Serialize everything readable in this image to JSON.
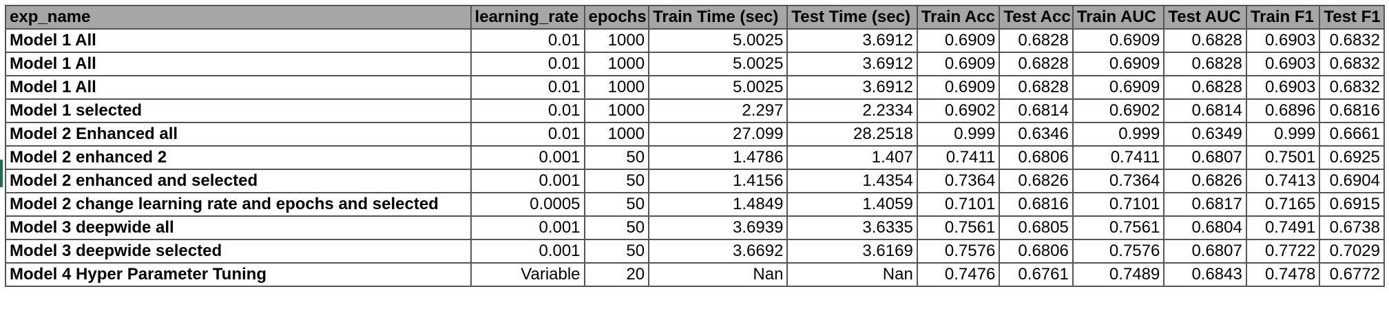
{
  "columns": [
    "exp_name",
    "learning_rate",
    "epochs",
    "Train Time (sec)",
    "Test Time (sec)",
    "Train Acc",
    "Test Acc",
    "Train AUC",
    "Test AUC",
    "Train F1",
    "Test F1"
  ],
  "rows": [
    [
      "Model 1 All",
      "0.01",
      "1000",
      "5.0025",
      "3.6912",
      "0.6909",
      "0.6828",
      "0.6909",
      "0.6828",
      "0.6903",
      "0.6832"
    ],
    [
      "Model 1 All",
      "0.01",
      "1000",
      "5.0025",
      "3.6912",
      "0.6909",
      "0.6828",
      "0.6909",
      "0.6828",
      "0.6903",
      "0.6832"
    ],
    [
      "Model 1 All",
      "0.01",
      "1000",
      "5.0025",
      "3.6912",
      "0.6909",
      "0.6828",
      "0.6909",
      "0.6828",
      "0.6903",
      "0.6832"
    ],
    [
      "Model 1 selected",
      "0.01",
      "1000",
      "2.297",
      "2.2334",
      "0.6902",
      "0.6814",
      "0.6902",
      "0.6814",
      "0.6896",
      "0.6816"
    ],
    [
      "Model 2 Enhanced all",
      "0.01",
      "1000",
      "27.099",
      "28.2518",
      "0.999",
      "0.6346",
      "0.999",
      "0.6349",
      "0.999",
      "0.6661"
    ],
    [
      "Model 2 enhanced 2",
      "0.001",
      "50",
      "1.4786",
      "1.407",
      "0.7411",
      "0.6806",
      "0.7411",
      "0.6807",
      "0.7501",
      "0.6925"
    ],
    [
      "Model 2 enhanced and selected",
      "0.001",
      "50",
      "1.4156",
      "1.4354",
      "0.7364",
      "0.6826",
      "0.7364",
      "0.6826",
      "0.7413",
      "0.6904"
    ],
    [
      "Model 2 change learning rate and epochs and selected",
      "0.0005",
      "50",
      "1.4849",
      "1.4059",
      "0.7101",
      "0.6816",
      "0.7101",
      "0.6817",
      "0.7165",
      "0.6915"
    ],
    [
      "Model 3 deepwide all",
      "0.001",
      "50",
      "3.6939",
      "3.6335",
      "0.7561",
      "0.6805",
      "0.7561",
      "0.6804",
      "0.7491",
      "0.6738"
    ],
    [
      "Model 3 deepwide selected",
      "0.001",
      "50",
      "3.6692",
      "3.6169",
      "0.7576",
      "0.6806",
      "0.7576",
      "0.6807",
      "0.7722",
      "0.7029"
    ],
    [
      "Model 4 Hyper Parameter Tuning",
      "Variable",
      "20",
      "Nan",
      "Nan",
      "0.7476",
      "0.6761",
      "0.7489",
      "0.6843",
      "0.7478",
      "0.6772"
    ]
  ],
  "colors": {
    "header_bg": "#a6a6a6",
    "grid_line": "#555555",
    "row_marker": "#1e7145"
  }
}
